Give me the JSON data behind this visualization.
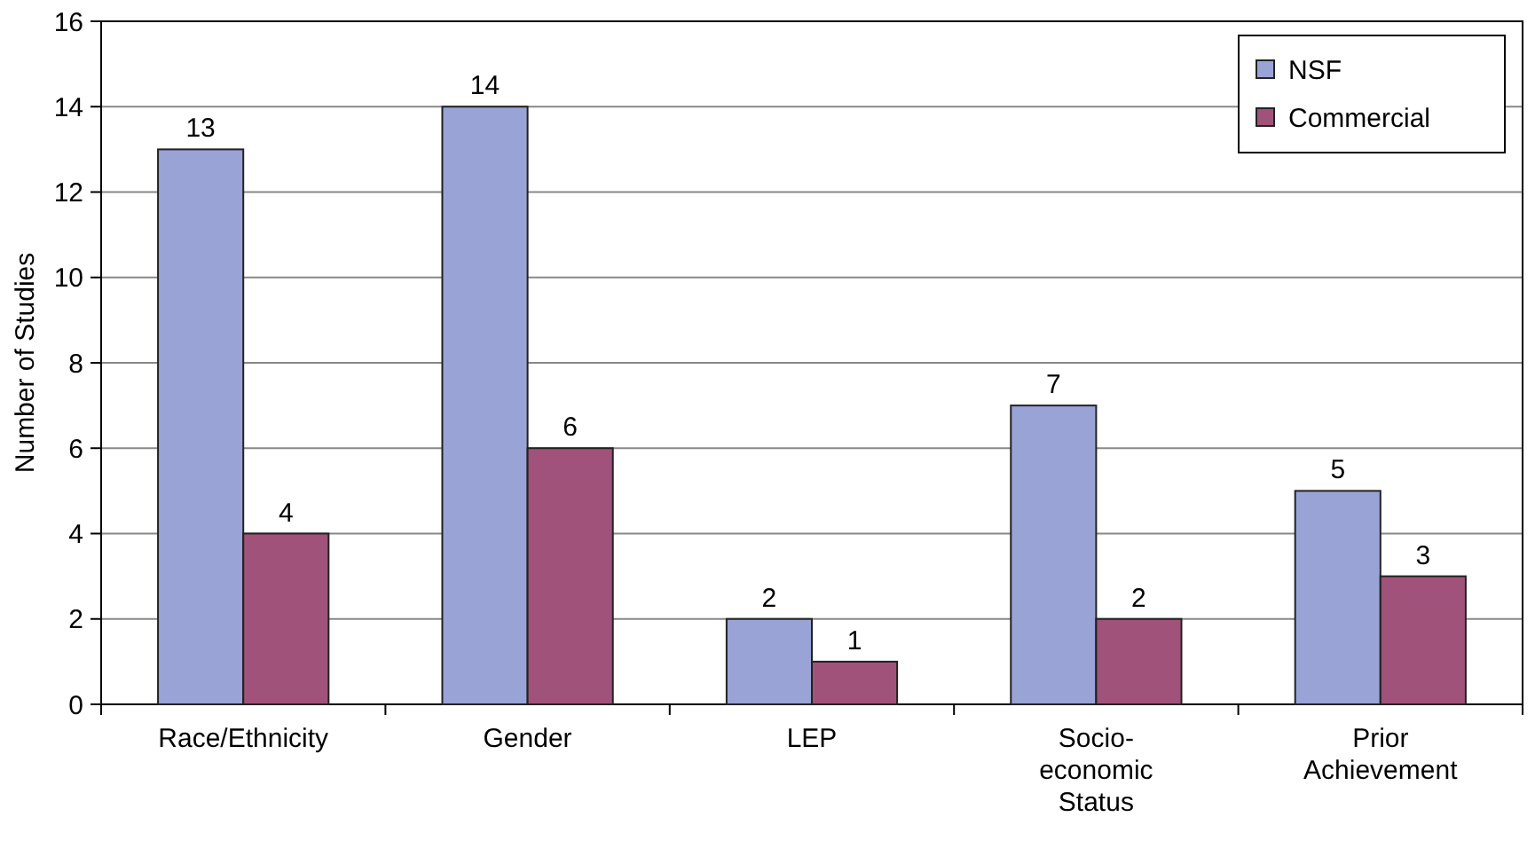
{
  "chart_data": {
    "type": "bar",
    "ylabel": "Number of Studies",
    "categories": [
      "Race/Ethnicity",
      "Gender",
      "LEP",
      "Socio-\neconomic\nStatus",
      "Prior\nAchievement"
    ],
    "series": [
      {
        "name": "NSF",
        "color": "#99a3d6",
        "values": [
          13,
          14,
          2,
          7,
          5
        ]
      },
      {
        "name": "Commercial",
        "color": "#a0527a",
        "values": [
          4,
          6,
          1,
          2,
          3
        ]
      }
    ],
    "ylim": [
      0,
      16
    ],
    "yticks": [
      0,
      2,
      4,
      6,
      8,
      10,
      12,
      14,
      16
    ],
    "grid": "y",
    "legend": "top right",
    "data_labels": true
  }
}
